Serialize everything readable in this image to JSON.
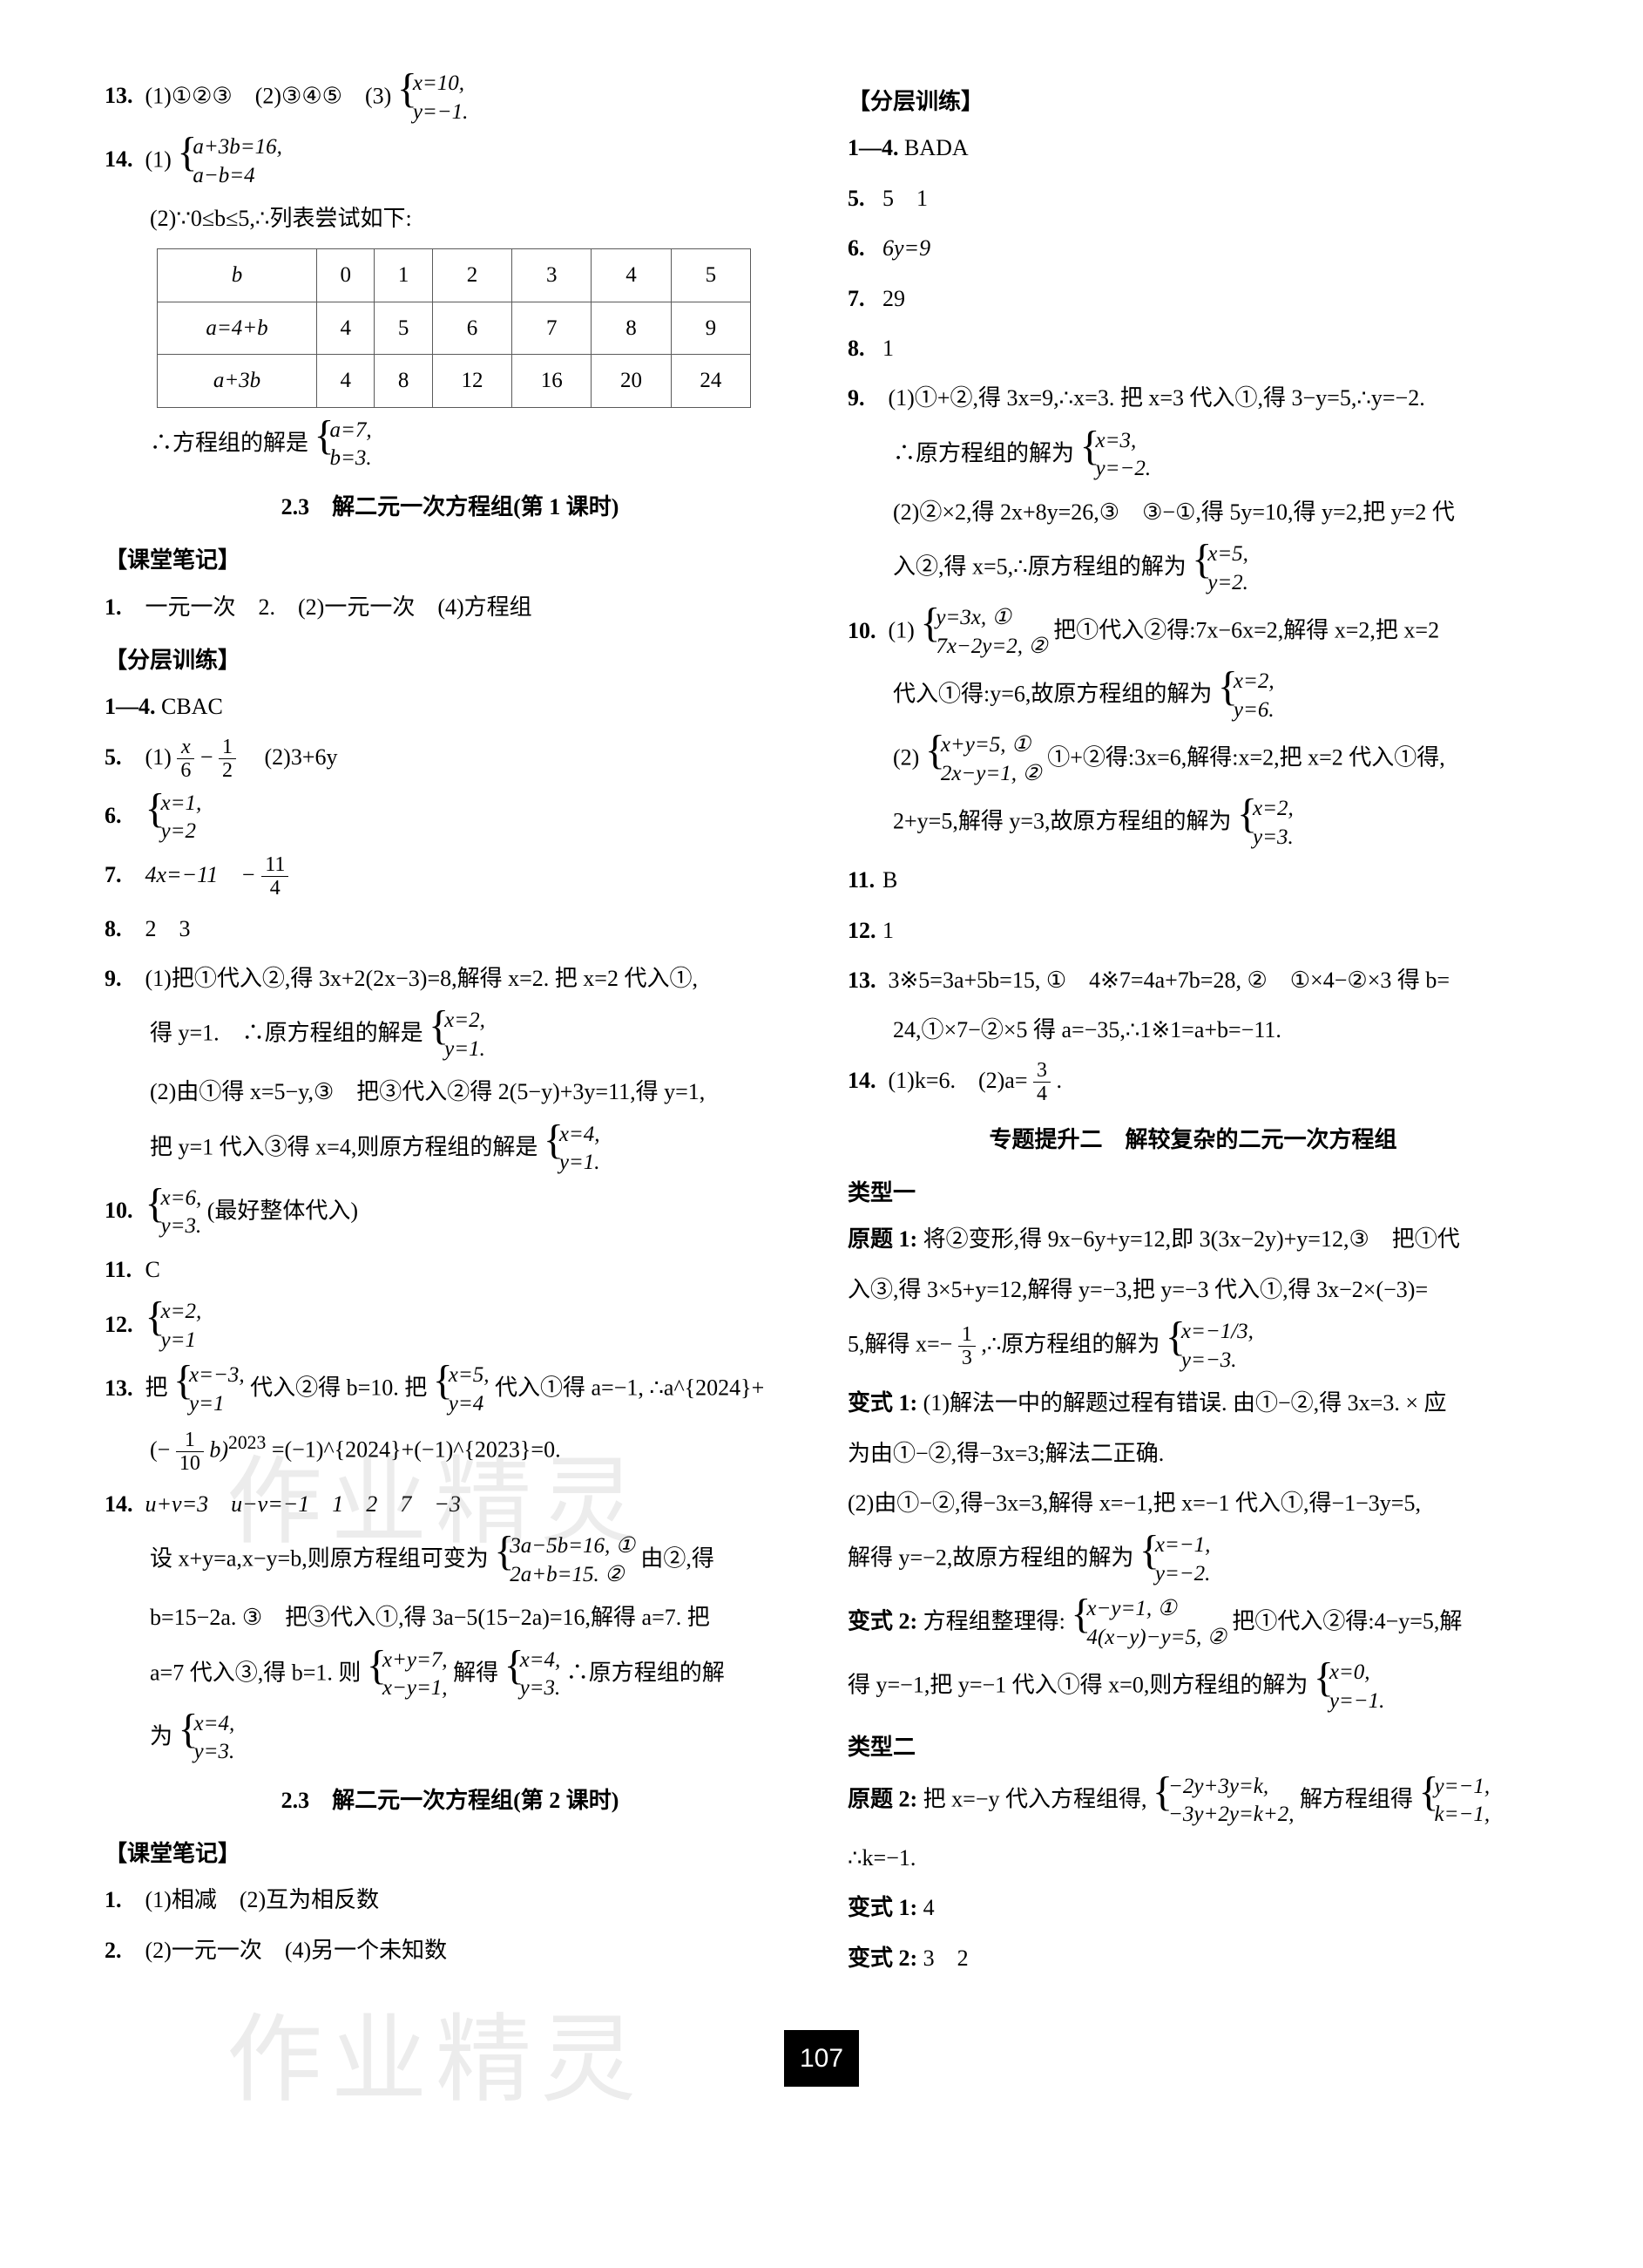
{
  "watermark": "作业精灵",
  "page_number": "107",
  "table": {
    "header": [
      "b",
      "0",
      "1",
      "2",
      "3",
      "4",
      "5"
    ],
    "rows": [
      [
        "a=4+b",
        "4",
        "5",
        "6",
        "7",
        "8",
        "9"
      ],
      [
        "a+3b",
        "4",
        "8",
        "12",
        "16",
        "20",
        "24"
      ]
    ]
  },
  "left": {
    "i13": {
      "label": "13.",
      "text": "(1)①②③　(2)③④⑤　(3)"
    },
    "i13_sys": [
      "x=10,",
      "y=−1."
    ],
    "i14": {
      "label": "14.",
      "text": "(1)"
    },
    "i14_sys": [
      "a+3b=16,",
      "a−b=4"
    ],
    "i14_2a": "(2)∵0≤b≤5,∴列表尝试如下:",
    "i14_2b": "∴方程组的解是",
    "i14_2b_sys": [
      "a=7,",
      "b=3."
    ],
    "title_231": "2.3　解二元一次方程组(第 1 课时)",
    "kt": "【课堂笔记】",
    "kt1": {
      "label": "1.",
      "text": "一元一次　2.　(2)一元一次　(4)方程组"
    },
    "fc": "【分层训练】",
    "a14": {
      "label": "1—4.",
      "text": "CBAC"
    },
    "a5": {
      "label": "5.",
      "t1": "(1)",
      "t2": "　(2)3+6y"
    },
    "a5_f1n": "x",
    "a5_f1d": "6",
    "a5_f2n": "1",
    "a5_f2d": "2",
    "a6": {
      "label": "6."
    },
    "a6_sys": [
      "x=1,",
      "y=2"
    ],
    "a7": {
      "label": "7.",
      "t1": "4x=−11　−"
    },
    "a7_fn": "11",
    "a7_fd": "4",
    "a8": {
      "label": "8.",
      "text": "2　3"
    },
    "a9": {
      "label": "9.",
      "l1": "(1)把①代入②,得 3x+2(2x−3)=8,解得 x=2. 把 x=2 代入①,",
      "l2": "得 y=1.　∴原方程组的解是",
      "sys1": [
        "x=2,",
        "y=1."
      ],
      "l3": "(2)由①得 x=5−y,③　把③代入②得 2(5−y)+3y=11,得 y=1,",
      "l4": "把 y=1 代入③得 x=4,则原方程组的解是",
      "sys2": [
        "x=4,",
        "y=1."
      ]
    },
    "a10": {
      "label": "10.",
      "sys": [
        "x=6,",
        "y=3."
      ],
      "tail": "(最好整体代入)"
    },
    "a11": {
      "label": "11.",
      "text": "C"
    },
    "a12": {
      "label": "12."
    },
    "a12_sys": [
      "x=2,",
      "y=1"
    ],
    "a13": {
      "label": "13.",
      "l1": "把",
      "sys": [
        "x=−3,",
        "y=1"
      ],
      "l2": "代入②得 b=10. 把",
      "sys2": [
        "x=5,",
        "y=4"
      ],
      "l3": "代入①得 a=−1, ∴a^{2024}+",
      "l4a": "(−",
      "fn": "1",
      "fd": "10",
      "l4b": "b)",
      "l4c": "=(−1)^{2024}+(−1)^{2023}=0."
    },
    "a14b": {
      "label": "14.",
      "l1": "u+v=3　u−v=−1　1　2　7　−3",
      "l2": "设 x+y=a,x−y=b,则原方程组可变为",
      "sys": [
        "3a−5b=16, ①",
        "2a+b=15. ②"
      ],
      "l2b": "由②,得",
      "l3": "b=15−2a. ③　把③代入①,得 3a−5(15−2a)=16,解得 a=7. 把",
      "l4": "a=7 代入③,得 b=1. 则",
      "sys2": [
        "x+y=7,",
        "x−y=1,"
      ],
      "l4b": "解得",
      "sys3": [
        "x=4,",
        "y=3."
      ],
      "l4c": "∴原方程组的解",
      "l5": "为",
      "sys4": [
        "x=4,",
        "y=3."
      ]
    },
    "title_232": "2.3　解二元一次方程组(第 2 课时)",
    "kt2": "【课堂笔记】",
    "kt2_1": {
      "label": "1.",
      "text": "(1)相减　(2)互为相反数"
    },
    "kt2_2": {
      "label": "2.",
      "text": "(2)一元一次　(4)另一个未知数"
    }
  },
  "right": {
    "fc": "【分层训练】",
    "b14": {
      "label": "1—4.",
      "text": "BADA"
    },
    "b5": {
      "label": "5.",
      "text": "5　1"
    },
    "b6": {
      "label": "6.",
      "text": "6y=9"
    },
    "b7": {
      "label": "7.",
      "text": "29"
    },
    "b8": {
      "label": "8.",
      "text": "1"
    },
    "b9": {
      "label": "9.",
      "l1": "(1)①+②,得 3x=9,∴x=3. 把 x=3 代入①,得 3−y=5,∴y=−2.",
      "l2": "∴原方程组的解为",
      "sys1": [
        "x=3,",
        "y=−2."
      ],
      "l3": "(2)②×2,得 2x+8y=26,③　③−①,得 5y=10,得 y=2,把 y=2 代",
      "l4": "入②,得 x=5,∴原方程组的解为",
      "sys2": [
        "x=5,",
        "y=2."
      ]
    },
    "b10": {
      "label": "10.",
      "l1": "(1)",
      "sys1": [
        "y=3x, ①",
        "7x−2y=2, ②"
      ],
      "l1b": "把①代入②得:7x−6x=2,解得 x=2,把 x=2",
      "l2": "代入①得:y=6,故原方程组的解为",
      "sys2": [
        "x=2,",
        "y=6."
      ],
      "l3": "(2)",
      "sys3": [
        "x+y=5, ①",
        "2x−y=1, ②"
      ],
      "l3b": "①+②得:3x=6,解得:x=2,把 x=2 代入①得,",
      "l4": "2+y=5,解得 y=3,故原方程组的解为",
      "sys4": [
        "x=2,",
        "y=3."
      ]
    },
    "b11": {
      "label": "11.",
      "text": "B"
    },
    "b12": {
      "label": "12.",
      "text": "1"
    },
    "b13": {
      "label": "13.",
      "text": "3※5=3a+5b=15, ①　4※7=4a+7b=28, ②　①×4−②×3 得 b=",
      "l2": "24,①×7−②×5 得 a=−35,∴1※1=a+b=−11."
    },
    "b14b": {
      "label": "14.",
      "t1": "(1)k=6.　(2)a=",
      "fn": "3",
      "fd": "4",
      "t2": "."
    },
    "zt_title": "专题提升二　解较复杂的二元一次方程组",
    "lx1": "类型一",
    "yt1": {
      "label": "原题 1:",
      "l1": "将②变形,得 9x−6y+y=12,即 3(3x−2y)+y=12,③　把①代",
      "l2": "入③,得 3×5+y=12,解得 y=−3,把 y=−3 代入①,得 3x−2×(−3)=",
      "l3a": "5,解得 x=−",
      "fn": "1",
      "fd": "3",
      "l3b": ",∴原方程组的解为",
      "sys": [
        "x=−1/3,",
        "y=−3."
      ]
    },
    "bs1": {
      "label": "变式 1:",
      "l1": "(1)解法一中的解题过程有错误. 由①−②,得 3x=3. × 应",
      "l2": "为由①−②,得−3x=3;解法二正确.",
      "l3": "(2)由①−②,得−3x=3,解得 x=−1,把 x=−1 代入①,得−1−3y=5,",
      "l4": "解得 y=−2,故原方程组的解为",
      "sys": [
        "x=−1,",
        "y=−2."
      ]
    },
    "bs2": {
      "label": "变式 2:",
      "l1": "方程组整理得:",
      "sys1": [
        "x−y=1, ①",
        "4(x−y)−y=5, ②"
      ],
      "l1b": "把①代入②得:4−y=5,解",
      "l2": "得 y=−1,把 y=−1 代入①得 x=0,则方程组的解为",
      "sys2": [
        "x=0,",
        "y=−1."
      ]
    },
    "lx2": "类型二",
    "yt2": {
      "label": "原题 2:",
      "l1": "把 x=−y 代入方程组得,",
      "sys1": [
        "−2y+3y=k,",
        "−3y+2y=k+2,"
      ],
      "l1b": "解方程组得",
      "sys2": [
        "y=−1,",
        "k=−1,"
      ],
      "l2": "∴k=−1."
    },
    "bs1b": {
      "label": "变式 1:",
      "text": "4"
    },
    "bs2b": {
      "label": "变式 2:",
      "text": "3　2"
    }
  }
}
